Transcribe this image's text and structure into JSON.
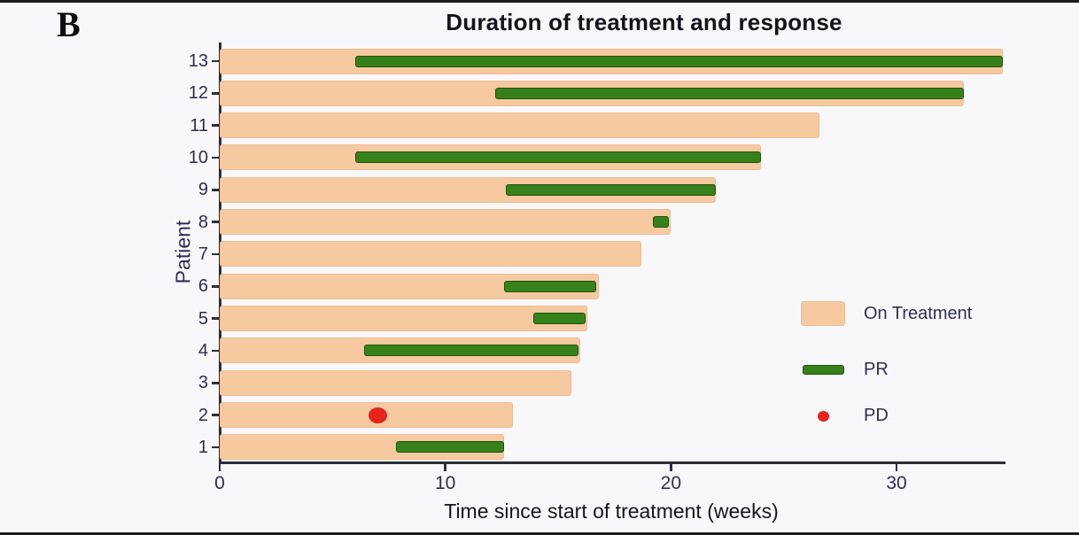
{
  "panel_label": "B",
  "title": "Duration of treatment and response",
  "legend": {
    "on_treatment_label": "On Treatment",
    "pr_label": "PR",
    "pd_label": "PD"
  },
  "colors": {
    "on_treatment": "#f6c9a0",
    "pr": "#37811c",
    "pd": "#e7231c",
    "axis": "#2e2e38",
    "tick_text": "#2d2d55",
    "background": "#f8f8fb"
  },
  "chart_data": {
    "type": "bar",
    "subtype": "horizontal-swimmer",
    "title": "Duration of treatment and response",
    "xlabel": "Time since start of treatment (weeks)",
    "ylabel": "Patient",
    "xlim": [
      0,
      34.75
    ],
    "xticks": [
      0,
      10,
      20,
      30
    ],
    "grid": false,
    "legend_position": "right-middle",
    "series_legend": [
      "On Treatment",
      "PR",
      "PD"
    ],
    "patients": [
      {
        "patient": "13",
        "treatment_weeks": 34.7,
        "pr_start": 6.0,
        "pr_end": 34.7,
        "pd_at": null
      },
      {
        "patient": "12",
        "treatment_weeks": 33.0,
        "pr_start": 12.2,
        "pr_end": 33.0,
        "pd_at": null
      },
      {
        "patient": "11",
        "treatment_weeks": 26.6,
        "pr_start": null,
        "pr_end": null,
        "pd_at": null
      },
      {
        "patient": "10",
        "treatment_weeks": 24.0,
        "pr_start": 6.0,
        "pr_end": 24.0,
        "pd_at": null
      },
      {
        "patient": "9",
        "treatment_weeks": 22.0,
        "pr_start": 12.7,
        "pr_end": 22.0,
        "pd_at": null
      },
      {
        "patient": "8",
        "treatment_weeks": 20.0,
        "pr_start": 19.2,
        "pr_end": 19.9,
        "pd_at": null
      },
      {
        "patient": "7",
        "treatment_weeks": 18.7,
        "pr_start": null,
        "pr_end": null,
        "pd_at": null
      },
      {
        "patient": "6",
        "treatment_weeks": 16.8,
        "pr_start": 12.6,
        "pr_end": 16.7,
        "pd_at": null
      },
      {
        "patient": "5",
        "treatment_weeks": 16.3,
        "pr_start": 13.9,
        "pr_end": 16.2,
        "pd_at": null
      },
      {
        "patient": "4",
        "treatment_weeks": 16.0,
        "pr_start": 6.4,
        "pr_end": 15.9,
        "pd_at": null
      },
      {
        "patient": "3",
        "treatment_weeks": 15.6,
        "pr_start": null,
        "pr_end": null,
        "pd_at": null
      },
      {
        "patient": "2",
        "treatment_weeks": 13.0,
        "pr_start": null,
        "pr_end": null,
        "pd_at": 7.0
      },
      {
        "patient": "1",
        "treatment_weeks": 12.6,
        "pr_start": 7.8,
        "pr_end": 12.6,
        "pd_at": null
      }
    ]
  }
}
